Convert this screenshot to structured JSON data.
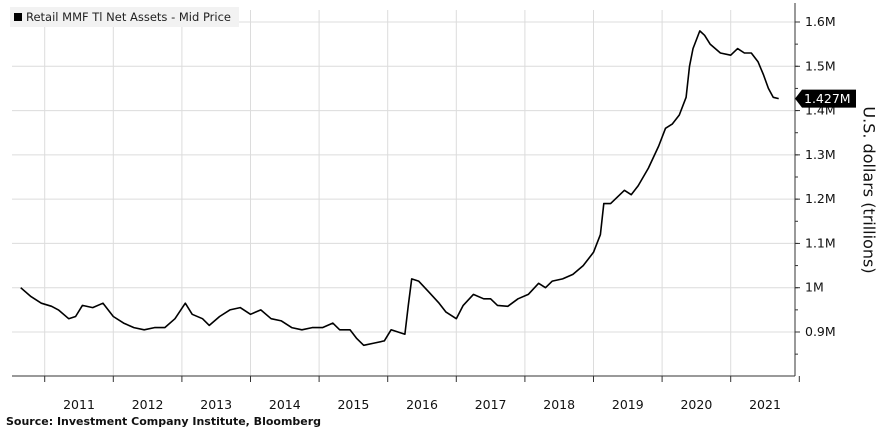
{
  "chart_data": {
    "type": "line",
    "title": "",
    "ylabel": "U.S. dollars (trillions)",
    "xlabel": "",
    "legend": {
      "placement": "top-left",
      "entries": [
        "Retail MMF Tl Net Assets - Mid Price"
      ]
    },
    "last_value_label": "1.427M",
    "source": "Source: Investment Company Institute, Bloomberg",
    "grid": true,
    "ylim": [
      0.8,
      1.62
    ],
    "xlim": [
      2010.15,
      2021.25
    ],
    "x_ticks": [
      2011,
      2012,
      2013,
      2014,
      2015,
      2016,
      2017,
      2018,
      2019,
      2020,
      2021
    ],
    "x_tick_labels": [
      "2011",
      "2012",
      "2013",
      "2014",
      "2015",
      "2016",
      "2017",
      "2018",
      "2019",
      "2020",
      "2021"
    ],
    "y_ticks": [
      0.9,
      1.0,
      1.1,
      1.2,
      1.3,
      1.4,
      1.5,
      1.6
    ],
    "y_tick_labels": [
      "0.9M",
      "1M",
      "1.1M",
      "1.2M",
      "1.3M",
      "1.4M",
      "1.5M",
      "1.6M"
    ],
    "series": [
      {
        "name": "Retail MMF Tl Net Assets - Mid Price",
        "color": "#000000",
        "points": [
          [
            2010.15,
            1.0
          ],
          [
            2010.3,
            0.98
          ],
          [
            2010.45,
            0.965
          ],
          [
            2010.6,
            0.958
          ],
          [
            2010.7,
            0.95
          ],
          [
            2010.85,
            0.93
          ],
          [
            2010.95,
            0.935
          ],
          [
            2011.05,
            0.96
          ],
          [
            2011.2,
            0.955
          ],
          [
            2011.35,
            0.965
          ],
          [
            2011.5,
            0.935
          ],
          [
            2011.65,
            0.92
          ],
          [
            2011.8,
            0.91
          ],
          [
            2011.95,
            0.905
          ],
          [
            2012.1,
            0.91
          ],
          [
            2012.25,
            0.91
          ],
          [
            2012.4,
            0.93
          ],
          [
            2012.55,
            0.965
          ],
          [
            2012.65,
            0.94
          ],
          [
            2012.8,
            0.93
          ],
          [
            2012.9,
            0.915
          ],
          [
            2013.05,
            0.935
          ],
          [
            2013.2,
            0.95
          ],
          [
            2013.35,
            0.955
          ],
          [
            2013.5,
            0.94
          ],
          [
            2013.65,
            0.95
          ],
          [
            2013.8,
            0.93
          ],
          [
            2013.95,
            0.925
          ],
          [
            2014.1,
            0.91
          ],
          [
            2014.25,
            0.905
          ],
          [
            2014.4,
            0.91
          ],
          [
            2014.55,
            0.91
          ],
          [
            2014.7,
            0.92
          ],
          [
            2014.8,
            0.905
          ],
          [
            2014.95,
            0.905
          ],
          [
            2015.05,
            0.885
          ],
          [
            2015.15,
            0.87
          ],
          [
            2015.3,
            0.875
          ],
          [
            2015.45,
            0.88
          ],
          [
            2015.55,
            0.905
          ],
          [
            2015.65,
            0.9
          ],
          [
            2015.75,
            0.895
          ],
          [
            2015.8,
            0.96
          ],
          [
            2015.85,
            1.02
          ],
          [
            2015.95,
            1.015
          ],
          [
            2016.1,
            0.99
          ],
          [
            2016.25,
            0.965
          ],
          [
            2016.35,
            0.945
          ],
          [
            2016.5,
            0.93
          ],
          [
            2016.6,
            0.96
          ],
          [
            2016.75,
            0.985
          ],
          [
            2016.9,
            0.975
          ],
          [
            2017.0,
            0.975
          ],
          [
            2017.1,
            0.96
          ],
          [
            2017.25,
            0.958
          ],
          [
            2017.4,
            0.975
          ],
          [
            2017.55,
            0.985
          ],
          [
            2017.7,
            1.01
          ],
          [
            2017.8,
            1.0
          ],
          [
            2017.9,
            1.015
          ],
          [
            2018.05,
            1.02
          ],
          [
            2018.2,
            1.03
          ],
          [
            2018.35,
            1.05
          ],
          [
            2018.5,
            1.08
          ],
          [
            2018.6,
            1.12
          ],
          [
            2018.65,
            1.19
          ],
          [
            2018.75,
            1.19
          ],
          [
            2018.85,
            1.205
          ],
          [
            2018.95,
            1.22
          ],
          [
            2019.05,
            1.21
          ],
          [
            2019.15,
            1.23
          ],
          [
            2019.3,
            1.27
          ],
          [
            2019.45,
            1.32
          ],
          [
            2019.55,
            1.36
          ],
          [
            2019.65,
            1.37
          ],
          [
            2019.75,
            1.39
          ],
          [
            2019.85,
            1.43
          ],
          [
            2019.9,
            1.5
          ],
          [
            2019.95,
            1.54
          ],
          [
            2020.05,
            1.58
          ],
          [
            2020.12,
            1.57
          ],
          [
            2020.2,
            1.55
          ],
          [
            2020.35,
            1.53
          ],
          [
            2020.5,
            1.525
          ],
          [
            2020.6,
            1.54
          ],
          [
            2020.7,
            1.53
          ],
          [
            2020.8,
            1.53
          ],
          [
            2020.9,
            1.51
          ],
          [
            2020.98,
            1.48
          ],
          [
            2021.05,
            1.45
          ],
          [
            2021.12,
            1.43
          ],
          [
            2021.2,
            1.427
          ]
        ]
      }
    ]
  }
}
